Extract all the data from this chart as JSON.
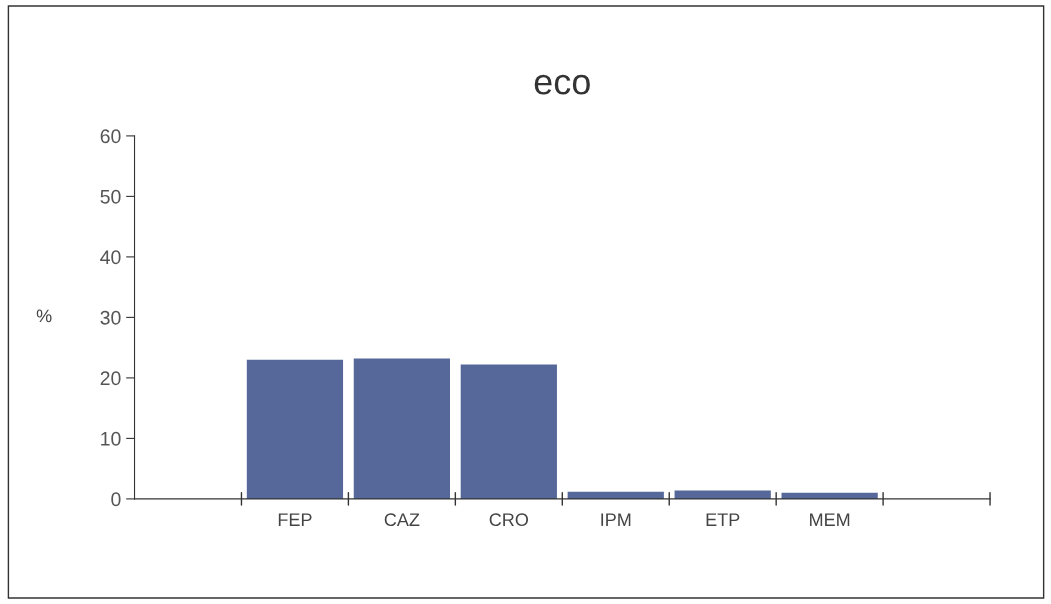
{
  "chart_data": {
    "type": "bar",
    "title": "eco",
    "ylabel": "%",
    "categories": [
      null,
      "FEP",
      "CAZ",
      "CRO",
      "IPM",
      "ETP",
      "MEM",
      null
    ],
    "values": [
      null,
      23.0,
      23.2,
      22.2,
      1.2,
      1.4,
      1.0,
      null
    ],
    "color": "#56679a",
    "ylim": [
      0,
      60
    ],
    "yticks": [
      0,
      10,
      20,
      30,
      40,
      50,
      60
    ],
    "grid": false
  }
}
